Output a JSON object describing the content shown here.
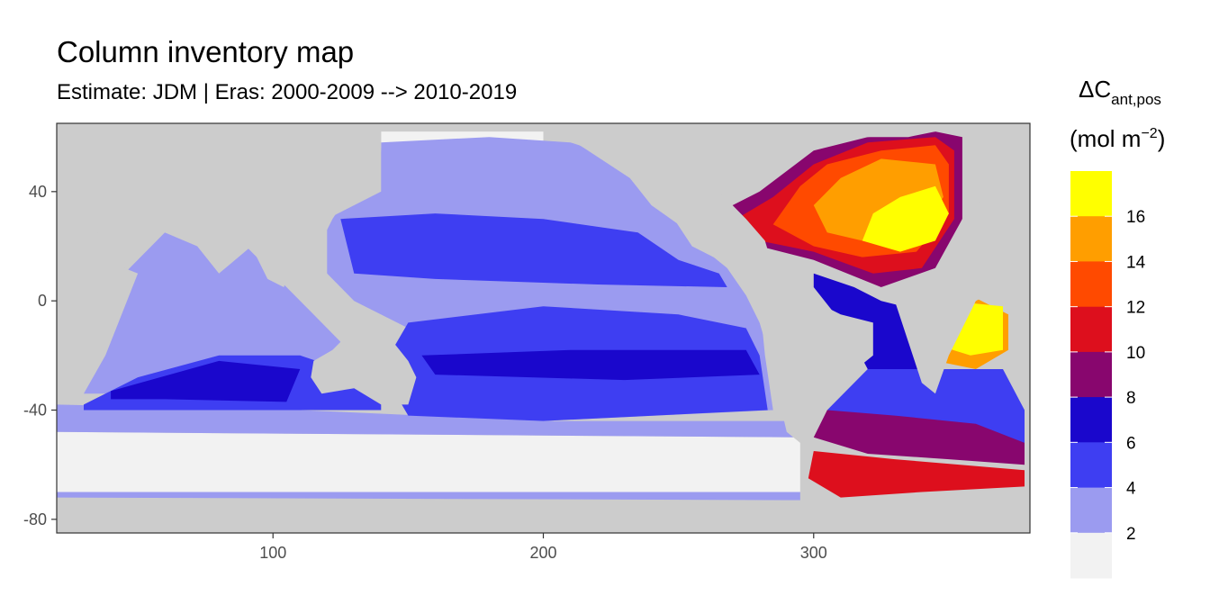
{
  "chart_data": {
    "type": "heatmap",
    "title": "Column inventory map",
    "subtitle": "Estimate: JDM  | Eras: 2000-2009 --> 2010-2019",
    "xlabel": "",
    "ylabel": "",
    "xlim": [
      20,
      380
    ],
    "ylim": [
      -85,
      65
    ],
    "x_ticks": [
      100,
      200,
      300
    ],
    "y_ticks": [
      40,
      0,
      -40,
      -80
    ],
    "grid": false,
    "land_color": "#cccccc",
    "legend": {
      "position": "right",
      "title_main": "ΔC",
      "title_sub": "ant,pos",
      "unit_prefix": "(mol m",
      "unit_exp": "−2",
      "unit_suffix": ")",
      "breaks": [
        2,
        4,
        6,
        8,
        10,
        12,
        14,
        16
      ],
      "colors": [
        "#f2f2f2",
        "#9b9bf0",
        "#3e3ef2",
        "#1a07cc",
        "#88066e",
        "#dd0f1d",
        "#ff4a00",
        "#ff9e00",
        "#ffff00"
      ]
    },
    "regions": [
      {
        "name": "Southern Ocean band",
        "bin": 0,
        "poly": [
          [
            20,
            -48
          ],
          [
            295,
            -50
          ],
          [
            295,
            -70
          ],
          [
            20,
            -70
          ]
        ]
      },
      {
        "name": "Arctic rim",
        "bin": 0,
        "poly": [
          [
            140,
            62
          ],
          [
            200,
            62
          ],
          [
            200,
            56
          ],
          [
            140,
            56
          ]
        ]
      },
      {
        "name": "Southern Ocean north rim",
        "bin": 1,
        "poly": [
          [
            20,
            -38
          ],
          [
            110,
            -40
          ],
          [
            200,
            -44
          ],
          [
            290,
            -44
          ],
          [
            295,
            -50
          ],
          [
            20,
            -48
          ]
        ]
      },
      {
        "name": "Southern Ocean south rim",
        "bin": 1,
        "poly": [
          [
            20,
            -70
          ],
          [
            295,
            -70
          ],
          [
            295,
            -73
          ],
          [
            20,
            -72
          ]
        ]
      },
      {
        "name": "Indian Ocean",
        "bin": 1,
        "poly": [
          [
            30,
            -34
          ],
          [
            40,
            -10
          ],
          [
            45,
            10
          ],
          [
            60,
            25
          ],
          [
            75,
            20
          ],
          [
            90,
            20
          ],
          [
            100,
            10
          ],
          [
            115,
            -5
          ],
          [
            125,
            -15
          ],
          [
            115,
            -25
          ],
          [
            115,
            -34
          ],
          [
            60,
            -34
          ]
        ]
      },
      {
        "name": "North Pacific",
        "bin": 1,
        "poly": [
          [
            140,
            58
          ],
          [
            180,
            60
          ],
          [
            210,
            58
          ],
          [
            235,
            50
          ],
          [
            245,
            35
          ],
          [
            255,
            20
          ],
          [
            265,
            15
          ],
          [
            275,
            10
          ],
          [
            280,
            0
          ],
          [
            282,
            -20
          ],
          [
            285,
            -40
          ],
          [
            200,
            -44
          ],
          [
            150,
            -42
          ],
          [
            145,
            -30
          ],
          [
            150,
            -10
          ],
          [
            130,
            0
          ],
          [
            120,
            10
          ],
          [
            120,
            30
          ],
          [
            140,
            40
          ]
        ]
      },
      {
        "name": "Indian Ocean subtropical gyre",
        "bin": 2,
        "poly": [
          [
            30,
            -38
          ],
          [
            50,
            -28
          ],
          [
            80,
            -20
          ],
          [
            110,
            -20
          ],
          [
            125,
            -25
          ],
          [
            140,
            -20
          ],
          [
            140,
            -40
          ],
          [
            100,
            -40
          ],
          [
            60,
            -40
          ],
          [
            30,
            -40
          ]
        ]
      },
      {
        "name": "North Pacific gyre",
        "bin": 2,
        "poly": [
          [
            125,
            30
          ],
          [
            160,
            32
          ],
          [
            200,
            30
          ],
          [
            235,
            25
          ],
          [
            250,
            15
          ],
          [
            265,
            10
          ],
          [
            268,
            5
          ],
          [
            220,
            6
          ],
          [
            160,
            8
          ],
          [
            130,
            10
          ]
        ]
      },
      {
        "name": "South Pacific gyre",
        "bin": 2,
        "poly": [
          [
            150,
            -8
          ],
          [
            200,
            -2
          ],
          [
            250,
            -5
          ],
          [
            275,
            -10
          ],
          [
            280,
            -20
          ],
          [
            283,
            -40
          ],
          [
            200,
            -44
          ],
          [
            150,
            -42
          ],
          [
            140,
            -25
          ]
        ]
      },
      {
        "name": "Indian deep band",
        "bin": 3,
        "poly": [
          [
            40,
            -33
          ],
          [
            80,
            -22
          ],
          [
            110,
            -25
          ],
          [
            105,
            -37
          ],
          [
            60,
            -36
          ],
          [
            40,
            -36
          ]
        ]
      },
      {
        "name": "South Pacific deep band",
        "bin": 3,
        "poly": [
          [
            155,
            -20
          ],
          [
            210,
            -18
          ],
          [
            275,
            -18
          ],
          [
            280,
            -27
          ],
          [
            230,
            -29
          ],
          [
            160,
            -27
          ]
        ]
      },
      {
        "name": "Atlantic equatorial",
        "bin": 3,
        "poly": [
          [
            300,
            10
          ],
          [
            315,
            5
          ],
          [
            325,
            0
          ],
          [
            345,
            -5
          ],
          [
            355,
            -10
          ],
          [
            345,
            -25
          ],
          [
            332,
            -30
          ],
          [
            320,
            -25
          ],
          [
            312,
            -10
          ],
          [
            300,
            5
          ]
        ]
      },
      {
        "name": "South Atlantic",
        "bin": 2,
        "poly": [
          [
            320,
            -25
          ],
          [
            345,
            -25
          ],
          [
            370,
            -25
          ],
          [
            378,
            -40
          ],
          [
            378,
            -55
          ],
          [
            350,
            -50
          ],
          [
            325,
            -45
          ],
          [
            305,
            -40
          ]
        ]
      },
      {
        "name": "South Atlantic purple band",
        "bin": 4,
        "poly": [
          [
            305,
            -40
          ],
          [
            330,
            -42
          ],
          [
            360,
            -45
          ],
          [
            378,
            -52
          ],
          [
            378,
            -60
          ],
          [
            350,
            -58
          ],
          [
            320,
            -56
          ],
          [
            300,
            -50
          ]
        ]
      },
      {
        "name": "South Atlantic red band",
        "bin": 5,
        "poly": [
          [
            300,
            -55
          ],
          [
            330,
            -58
          ],
          [
            378,
            -62
          ],
          [
            378,
            -68
          ],
          [
            340,
            -70
          ],
          [
            310,
            -72
          ],
          [
            298,
            -65
          ]
        ]
      },
      {
        "name": "North Atlantic purple",
        "bin": 4,
        "poly": [
          [
            260,
            30
          ],
          [
            280,
            40
          ],
          [
            300,
            55
          ],
          [
            320,
            60
          ],
          [
            345,
            62
          ],
          [
            355,
            60
          ],
          [
            355,
            30
          ],
          [
            345,
            10
          ],
          [
            325,
            5
          ],
          [
            300,
            15
          ],
          [
            280,
            20
          ]
        ]
      },
      {
        "name": "North Atlantic red",
        "bin": 5,
        "poly": [
          [
            268,
            28
          ],
          [
            285,
            38
          ],
          [
            300,
            50
          ],
          [
            320,
            58
          ],
          [
            345,
            60
          ],
          [
            352,
            55
          ],
          [
            352,
            30
          ],
          [
            340,
            12
          ],
          [
            322,
            10
          ],
          [
            300,
            18
          ],
          [
            280,
            22
          ]
        ]
      },
      {
        "name": "North Atlantic orange-red",
        "bin": 6,
        "poly": [
          [
            285,
            28
          ],
          [
            295,
            42
          ],
          [
            305,
            50
          ],
          [
            325,
            55
          ],
          [
            345,
            57
          ],
          [
            350,
            50
          ],
          [
            350,
            32
          ],
          [
            338,
            18
          ],
          [
            318,
            16
          ],
          [
            300,
            20
          ]
        ]
      },
      {
        "name": "North Atlantic orange",
        "bin": 7,
        "poly": [
          [
            300,
            35
          ],
          [
            310,
            45
          ],
          [
            325,
            52
          ],
          [
            345,
            50
          ],
          [
            348,
            38
          ],
          [
            338,
            25
          ],
          [
            318,
            22
          ],
          [
            305,
            25
          ]
        ]
      },
      {
        "name": "North Atlantic maximum",
        "bin": 8,
        "poly": [
          [
            318,
            22
          ],
          [
            322,
            32
          ],
          [
            332,
            38
          ],
          [
            345,
            42
          ],
          [
            350,
            32
          ],
          [
            345,
            22
          ],
          [
            332,
            18
          ]
        ]
      },
      {
        "name": "Tropical Atlantic orange",
        "bin": 7,
        "poly": [
          [
            335,
            -2
          ],
          [
            345,
            2
          ],
          [
            358,
            2
          ],
          [
            372,
            -5
          ],
          [
            372,
            -18
          ],
          [
            360,
            -25
          ],
          [
            345,
            -22
          ],
          [
            338,
            -12
          ]
        ]
      },
      {
        "name": "Tropical Atlantic maximum",
        "bin": 8,
        "poly": [
          [
            340,
            -2
          ],
          [
            350,
            0
          ],
          [
            370,
            -2
          ],
          [
            370,
            -18
          ],
          [
            358,
            -20
          ],
          [
            345,
            -16
          ]
        ]
      }
    ],
    "land": [
      {
        "name": "Africa and Europe",
        "poly": [
          [
            378,
            35
          ],
          [
            378,
            10
          ],
          [
            370,
            5
          ],
          [
            360,
            0
          ],
          [
            350,
            -20
          ],
          [
            345,
            -34
          ],
          [
            340,
            -30
          ],
          [
            335,
            -15
          ],
          [
            330,
            0
          ],
          [
            325,
            5
          ],
          [
            345,
            12
          ],
          [
            355,
            30
          ],
          [
            365,
            40
          ],
          [
            378,
            42
          ]
        ]
      },
      {
        "name": "Americas",
        "poly": [
          [
            205,
            62
          ],
          [
            240,
            62
          ],
          [
            255,
            55
          ],
          [
            265,
            40
          ],
          [
            275,
            30
          ],
          [
            282,
            22
          ],
          [
            285,
            12
          ],
          [
            290,
            5
          ],
          [
            300,
            0
          ],
          [
            310,
            -5
          ],
          [
            322,
            -8
          ],
          [
            322,
            -20
          ],
          [
            312,
            -28
          ],
          [
            305,
            -36
          ],
          [
            300,
            -48
          ],
          [
            295,
            -52
          ],
          [
            290,
            -48
          ],
          [
            287,
            -35
          ],
          [
            283,
            -18
          ],
          [
            280,
            -8
          ],
          [
            275,
            2
          ],
          [
            268,
            12
          ],
          [
            258,
            20
          ],
          [
            250,
            28
          ],
          [
            240,
            35
          ],
          [
            232,
            45
          ],
          [
            215,
            56
          ]
        ]
      },
      {
        "name": "Greenland",
        "poly": [
          [
            300,
            62
          ],
          [
            305,
            70
          ],
          [
            340,
            70
          ],
          [
            345,
            62
          ],
          [
            335,
            60
          ],
          [
            315,
            60
          ]
        ]
      },
      {
        "name": "Asia",
        "poly": [
          [
            20,
            65
          ],
          [
            140,
            65
          ],
          [
            140,
            55
          ],
          [
            130,
            42
          ],
          [
            122,
            30
          ],
          [
            118,
            22
          ],
          [
            108,
            15
          ],
          [
            104,
            5
          ],
          [
            98,
            8
          ],
          [
            92,
            20
          ],
          [
            80,
            10
          ],
          [
            72,
            20
          ],
          [
            60,
            25
          ],
          [
            50,
            20
          ],
          [
            45,
            12
          ],
          [
            35,
            25
          ],
          [
            20,
            30
          ]
        ]
      },
      {
        "name": "Australia",
        "poly": [
          [
            115,
            -22
          ],
          [
            122,
            -18
          ],
          [
            132,
            -12
          ],
          [
            142,
            -12
          ],
          [
            150,
            -22
          ],
          [
            153,
            -28
          ],
          [
            150,
            -38
          ],
          [
            140,
            -38
          ],
          [
            130,
            -32
          ],
          [
            118,
            -34
          ],
          [
            114,
            -28
          ]
        ]
      },
      {
        "name": "Antarctica",
        "poly": [
          [
            20,
            -73
          ],
          [
            295,
            -73
          ],
          [
            300,
            -78
          ],
          [
            340,
            -78
          ],
          [
            378,
            -70
          ],
          [
            378,
            -85
          ],
          [
            20,
            -85
          ]
        ]
      },
      {
        "name": "Southern Africa",
        "poly": [
          [
            20,
            -35
          ],
          [
            30,
            -34
          ],
          [
            38,
            -20
          ],
          [
            42,
            -10
          ],
          [
            50,
            10
          ],
          [
            45,
            12
          ],
          [
            35,
            25
          ],
          [
            20,
            30
          ]
        ]
      }
    ]
  }
}
